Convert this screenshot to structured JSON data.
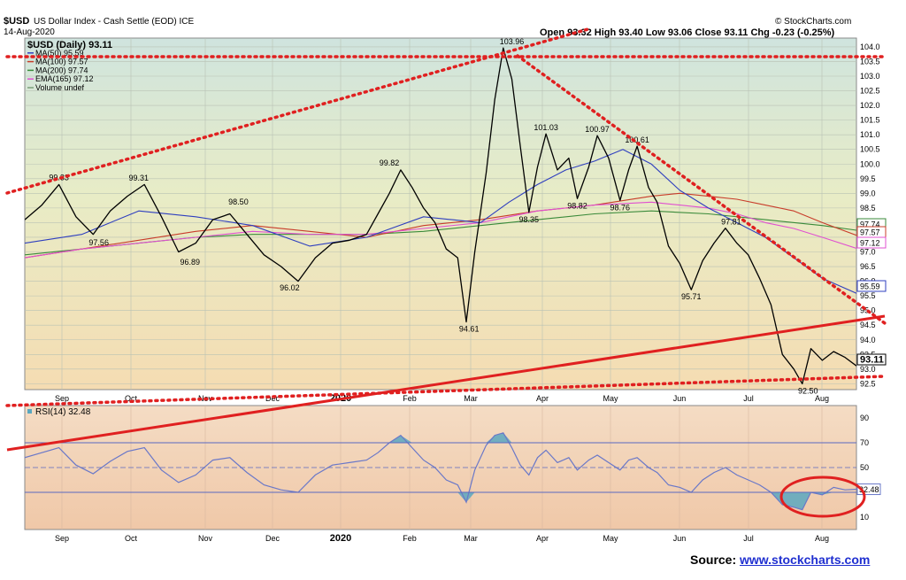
{
  "header": {
    "symbol": "$USD",
    "name": "US Dollar Index - Cash Settle (EOD) ICE",
    "date": "14-Aug-2020",
    "ohlc": "Open 93.32  High 93.40  Low 93.06  Close 93.11  Chg -0.23 (-0.25%)",
    "brand": "© StockCharts.com"
  },
  "legend": [
    {
      "text": "$USD (Daily) 93.11",
      "color": "#000000"
    },
    {
      "text": "MA(50) 95.59",
      "color": "#2f3fbf"
    },
    {
      "text": "MA(100) 97.57",
      "color": "#c83c2a"
    },
    {
      "text": "MA(200) 97.74",
      "color": "#3a8a3a"
    },
    {
      "text": "EMA(165) 97.12",
      "color": "#e050d0"
    },
    {
      "text": "Volume undef",
      "color": "#7aa07a"
    }
  ],
  "colors": {
    "price": "#000000",
    "ma50": "#2f3fbf",
    "ma100": "#c83c2a",
    "ma200": "#3a8a3a",
    "ema165": "#e050d0",
    "trend_red": "#e02020",
    "rsi_line": "#6a78c8",
    "rsi_fill": "#5aa7bf"
  },
  "chart_data": [
    {
      "type": "line",
      "x_labels": [
        "Sep",
        "Oct",
        "Nov",
        "Dec",
        "2020",
        "Feb",
        "Mar",
        "Apr",
        "May",
        "Jun",
        "Jul",
        "Aug"
      ],
      "ylim": [
        92.3,
        104.3
      ],
      "y_ticks": [
        92.5,
        93.0,
        93.5,
        94.0,
        94.5,
        95.0,
        95.5,
        96.0,
        96.5,
        97.0,
        97.5,
        98.0,
        98.5,
        99.0,
        99.5,
        100.0,
        100.5,
        101.0,
        101.5,
        102.0,
        102.5,
        103.0,
        103.5,
        104.0
      ],
      "y_tick_labels": [
        "92.5",
        "93.0",
        "93.5",
        "94.0",
        "94.5",
        "95.0",
        "95.5",
        "96.0",
        "96.5",
        "97.0",
        "97.5",
        "98.0",
        "98.5",
        "99.0",
        "99.5",
        "100.0",
        "100.5",
        "101.0",
        "101.5",
        "102.0",
        "102.5",
        "103.0",
        "103.5",
        "104.0"
      ],
      "price_markers": [
        {
          "label": "97.74",
          "value": 97.74,
          "color": "#3a8a3a"
        },
        {
          "label": "97.57",
          "value": 97.57,
          "color": "#c83c2a"
        },
        {
          "label": "97.12",
          "value": 97.12,
          "color": "#e050d0"
        },
        {
          "label": "95.59",
          "value": 95.59,
          "color": "#2f3fbf"
        },
        {
          "label": "93.11",
          "value": 93.11,
          "color": "#000000"
        }
      ],
      "annotations": [
        {
          "label": "99.33",
          "x": 0.6,
          "y": 99.33
        },
        {
          "label": "97.56",
          "x": 1.3,
          "y": 97.56
        },
        {
          "label": "99.31",
          "x": 2.0,
          "y": 99.31
        },
        {
          "label": "96.89",
          "x": 2.9,
          "y": 96.89
        },
        {
          "label": "98.50",
          "x": 3.75,
          "y": 98.5
        },
        {
          "label": "96.02",
          "x": 4.65,
          "y": 96.02
        },
        {
          "label": "99.82",
          "x": 6.4,
          "y": 99.82
        },
        {
          "label": "94.61",
          "x": 7.8,
          "y": 94.61
        },
        {
          "label": "103.96",
          "x": 8.55,
          "y": 103.96
        },
        {
          "label": "98.35",
          "x": 8.85,
          "y": 98.35
        },
        {
          "label": "101.03",
          "x": 9.15,
          "y": 101.03
        },
        {
          "label": "98.82",
          "x": 9.7,
          "y": 98.82
        },
        {
          "label": "100.97",
          "x": 10.05,
          "y": 100.97
        },
        {
          "label": "98.76",
          "x": 10.45,
          "y": 98.76
        },
        {
          "label": "100.61",
          "x": 10.75,
          "y": 100.61
        },
        {
          "label": "95.71",
          "x": 11.7,
          "y": 95.71
        },
        {
          "label": "97.81",
          "x": 12.4,
          "y": 97.81
        },
        {
          "label": "92.50",
          "x": 13.75,
          "y": 92.5
        }
      ],
      "series": [
        {
          "name": "$USD (Daily) 93.11",
          "key": "price",
          "x": [
            0,
            0.3,
            0.6,
            0.9,
            1.2,
            1.5,
            1.8,
            2.1,
            2.4,
            2.7,
            3.0,
            3.3,
            3.6,
            3.9,
            4.2,
            4.5,
            4.8,
            5.1,
            5.4,
            5.7,
            6.0,
            6.2,
            6.4,
            6.6,
            6.8,
            7.0,
            7.2,
            7.4,
            7.6,
            7.75,
            7.9,
            8.1,
            8.25,
            8.4,
            8.55,
            8.7,
            8.85,
            9.0,
            9.15,
            9.35,
            9.55,
            9.7,
            9.9,
            10.05,
            10.25,
            10.45,
            10.6,
            10.75,
            10.95,
            11.1,
            11.3,
            11.5,
            11.7,
            11.9,
            12.1,
            12.3,
            12.5,
            12.7,
            12.9,
            13.1,
            13.3,
            13.5,
            13.65,
            13.8,
            14.0,
            14.2,
            14.4,
            14.6
          ],
          "y": [
            98.1,
            98.6,
            99.3,
            98.2,
            97.6,
            98.4,
            98.9,
            99.3,
            98.2,
            97.0,
            97.3,
            98.1,
            98.3,
            97.6,
            96.9,
            96.5,
            96.0,
            96.8,
            97.3,
            97.4,
            97.6,
            98.3,
            99.0,
            99.8,
            99.2,
            98.5,
            98.0,
            97.1,
            96.8,
            94.61,
            97.0,
            99.7,
            102.2,
            103.96,
            102.9,
            100.6,
            98.35,
            99.9,
            101.03,
            99.8,
            100.2,
            98.82,
            99.9,
            100.97,
            100.2,
            98.76,
            99.8,
            100.61,
            99.2,
            98.7,
            97.2,
            96.6,
            95.71,
            96.7,
            97.3,
            97.81,
            97.3,
            96.9,
            96.1,
            95.2,
            93.5,
            93.0,
            92.5,
            93.7,
            93.3,
            93.6,
            93.4,
            93.11
          ]
        },
        {
          "name": "MA(50) 95.59",
          "key": "ma50",
          "x": [
            0,
            1,
            2,
            3,
            4,
            5,
            6,
            7,
            7.5,
            8,
            8.5,
            9,
            9.5,
            10,
            10.5,
            11,
            11.5,
            12,
            12.5,
            13,
            13.5,
            14,
            14.6
          ],
          "y": [
            97.3,
            97.6,
            98.4,
            98.2,
            97.9,
            97.2,
            97.5,
            98.2,
            98.1,
            98.0,
            98.7,
            99.3,
            99.8,
            100.1,
            100.5,
            100.0,
            99.1,
            98.5,
            98.0,
            97.5,
            96.8,
            96.1,
            95.59
          ]
        },
        {
          "name": "MA(100) 97.57",
          "key": "ma100",
          "x": [
            0,
            1,
            2,
            3,
            4,
            5,
            6,
            7,
            8,
            9,
            10,
            11,
            11.5,
            12,
            12.5,
            13,
            13.5,
            14,
            14.6
          ],
          "y": [
            96.8,
            97.1,
            97.4,
            97.7,
            97.9,
            97.7,
            97.5,
            97.9,
            98.1,
            98.4,
            98.6,
            98.9,
            99.0,
            98.9,
            98.8,
            98.6,
            98.4,
            98.0,
            97.57
          ]
        },
        {
          "name": "MA(200) 97.74",
          "key": "ma200",
          "x": [
            0,
            1,
            2,
            3,
            4,
            5,
            6,
            7,
            8,
            9,
            10,
            11,
            12,
            13,
            14,
            14.6
          ],
          "y": [
            96.9,
            97.1,
            97.3,
            97.5,
            97.6,
            97.6,
            97.6,
            97.7,
            97.9,
            98.1,
            98.3,
            98.4,
            98.3,
            98.1,
            97.9,
            97.74
          ]
        },
        {
          "name": "EMA(165) 97.12",
          "key": "ema165",
          "x": [
            0,
            1,
            2,
            3,
            4,
            5,
            6,
            7,
            8,
            9,
            10,
            11,
            11.5,
            12,
            12.5,
            13,
            13.5,
            14,
            14.6
          ],
          "y": [
            96.8,
            97.1,
            97.3,
            97.5,
            97.7,
            97.6,
            97.6,
            97.8,
            98.0,
            98.4,
            98.6,
            98.7,
            98.6,
            98.5,
            98.3,
            98.0,
            97.8,
            97.5,
            97.12
          ]
        }
      ]
    },
    {
      "type": "line",
      "title": "RSI(14) 32.48",
      "x_labels": [
        "Sep",
        "Oct",
        "Nov",
        "Dec",
        "2020",
        "Feb",
        "Mar",
        "Apr",
        "May",
        "Jun",
        "Jul",
        "Aug"
      ],
      "ylim": [
        0,
        100
      ],
      "y_ticks": [
        10,
        30,
        50,
        70,
        90
      ],
      "y_tick_labels": [
        "10",
        "30",
        "50",
        "70",
        "90"
      ],
      "reference_lines": [
        30,
        50,
        70
      ],
      "last_value_label": "32.48",
      "series": [
        {
          "name": "RSI(14) 32.48",
          "key": "rsi",
          "x": [
            0,
            0.3,
            0.6,
            0.9,
            1.2,
            1.5,
            1.8,
            2.1,
            2.4,
            2.7,
            3.0,
            3.3,
            3.6,
            3.9,
            4.2,
            4.5,
            4.8,
            5.1,
            5.4,
            5.7,
            6.0,
            6.2,
            6.4,
            6.6,
            6.8,
            7.0,
            7.2,
            7.4,
            7.6,
            7.75,
            7.9,
            8.1,
            8.25,
            8.4,
            8.55,
            8.7,
            8.85,
            9.0,
            9.15,
            9.35,
            9.55,
            9.7,
            9.9,
            10.05,
            10.25,
            10.45,
            10.6,
            10.75,
            10.95,
            11.1,
            11.3,
            11.5,
            11.7,
            11.9,
            12.1,
            12.3,
            12.5,
            12.7,
            12.9,
            13.1,
            13.3,
            13.5,
            13.65,
            13.8,
            14.0,
            14.2,
            14.4,
            14.6
          ],
          "y": [
            58,
            62,
            66,
            52,
            45,
            55,
            63,
            66,
            48,
            38,
            44,
            56,
            58,
            46,
            36,
            32,
            30,
            44,
            52,
            54,
            56,
            62,
            70,
            76,
            66,
            56,
            50,
            40,
            36,
            22,
            48,
            68,
            76,
            78,
            66,
            52,
            44,
            58,
            64,
            54,
            58,
            48,
            56,
            60,
            54,
            48,
            56,
            58,
            50,
            46,
            36,
            34,
            30,
            40,
            46,
            50,
            44,
            40,
            36,
            30,
            20,
            18,
            16,
            30,
            28,
            34,
            32,
            32.48
          ]
        }
      ]
    }
  ],
  "source": {
    "label": "Source:",
    "link": "www.stockcharts.com"
  }
}
